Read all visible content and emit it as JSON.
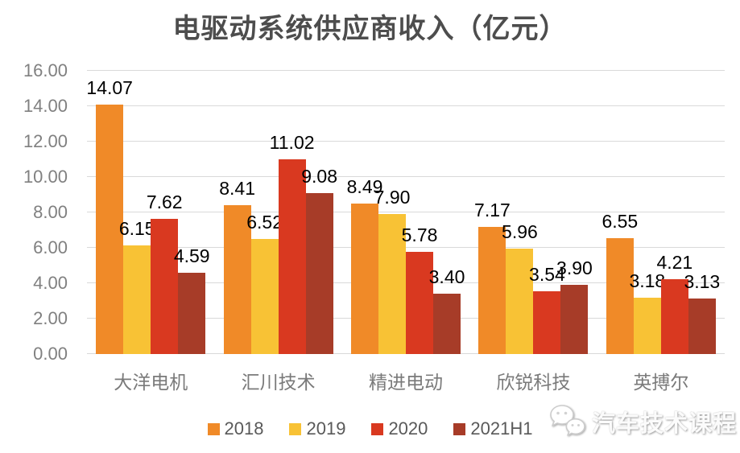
{
  "title": "电驱动系统供应商收入（亿元）",
  "chart_data": {
    "type": "bar",
    "title": "电驱动系统供应商收入（亿元）",
    "categories": [
      "大洋电机",
      "汇川技术",
      "精进电动",
      "欣锐科技",
      "英搏尔"
    ],
    "series": [
      {
        "name": "2018",
        "color": "#F08A28",
        "values": [
          14.07,
          8.41,
          8.49,
          7.17,
          6.55
        ]
      },
      {
        "name": "2019",
        "color": "#F8C235",
        "values": [
          6.15,
          6.52,
          7.9,
          5.96,
          3.18
        ]
      },
      {
        "name": "2020",
        "color": "#D93920",
        "values": [
          7.62,
          11.02,
          5.78,
          3.54,
          4.21
        ]
      },
      {
        "name": "2021H1",
        "color": "#A73C28",
        "values": [
          4.59,
          9.08,
          3.4,
          3.9,
          3.13
        ]
      }
    ],
    "ylim": [
      0,
      16
    ],
    "ytick_step": 2,
    "yticks": [
      "0.00",
      "2.00",
      "4.00",
      "6.00",
      "8.00",
      "10.00",
      "12.00",
      "14.00",
      "16.00"
    ],
    "value_label_decimals": 2,
    "grid": true,
    "legend_position": "bottom",
    "xlabel": "",
    "ylabel": ""
  },
  "watermark": {
    "text": "汽车技术课程",
    "icon": "wechat-chat-bubbles-icon"
  },
  "colors": {
    "title_text": "#4d4d4d",
    "axis_text": "#808080",
    "category_text": "#7a7a7a",
    "legend_text": "#595959",
    "gridline": "#d9d9d9",
    "data_label": "#000000",
    "background": "#ffffff"
  }
}
